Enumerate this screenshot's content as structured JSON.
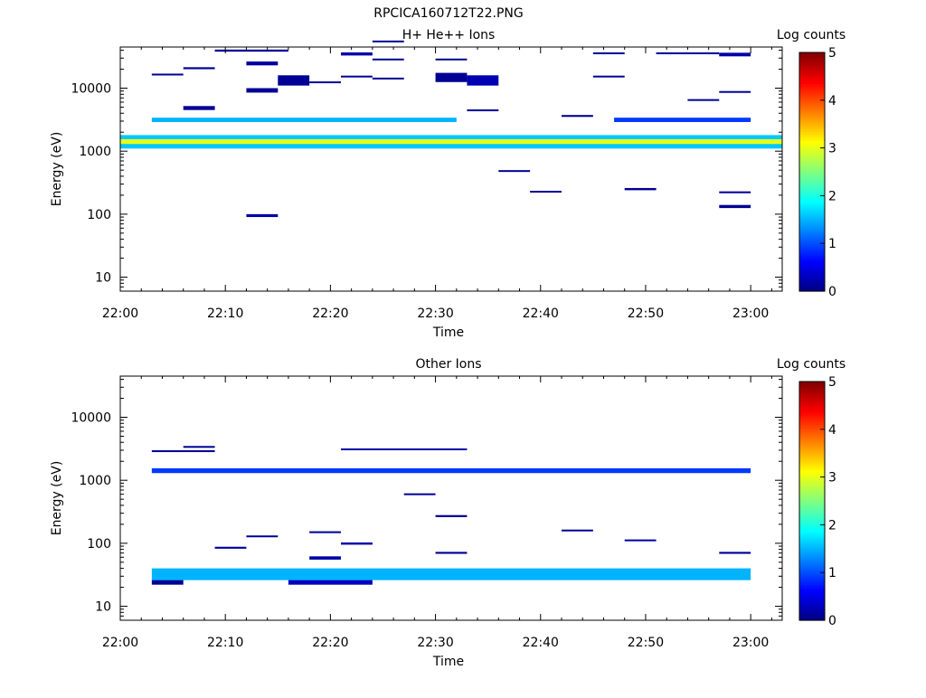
{
  "figure_title": "RPCICA160712T22.PNG",
  "colors": {
    "axis": "#000000",
    "background": "#ffffff"
  },
  "colorbar": {
    "label": "Log counts",
    "min": 0,
    "max": 5,
    "ticks": [
      "0",
      "1",
      "2",
      "3",
      "4",
      "5"
    ],
    "colormap": "jet"
  },
  "chart_data": [
    {
      "type": "heatmap",
      "title": "H+ He++ Ions",
      "xlabel": "Time",
      "ylabel": "Energy (eV)",
      "yscale": "log",
      "ylim": [
        6,
        45000
      ],
      "xlim": [
        "22:00",
        "23:03"
      ],
      "xticks": [
        "22:00",
        "22:10",
        "22:20",
        "22:30",
        "22:40",
        "22:50",
        "23:00"
      ],
      "yticks": [
        "10",
        "100",
        "1000",
        "10000"
      ],
      "cells": [
        {
          "t0": "22:00:00",
          "t1": "23:03:00",
          "e0": 1100,
          "e1": 1800,
          "v": 1.6
        },
        {
          "t0": "22:00:00",
          "t1": "23:03:00",
          "e0": 1300,
          "e1": 1550,
          "v": 3.0
        },
        {
          "t0": "22:03:00",
          "t1": "22:32:00",
          "e0": 2900,
          "e1": 3400,
          "v": 1.5
        },
        {
          "t0": "22:47:00",
          "t1": "23:00:00",
          "e0": 2900,
          "e1": 3400,
          "v": 0.9
        },
        {
          "t0": "22:03:00",
          "t1": "22:06:00",
          "e0": 16000,
          "e1": 17000,
          "v": 0.1
        },
        {
          "t0": "22:06:00",
          "t1": "22:09:00",
          "e0": 20000,
          "e1": 21500,
          "v": 0.1
        },
        {
          "t0": "22:06:00",
          "t1": "22:09:00",
          "e0": 4500,
          "e1": 5200,
          "v": 0.1
        },
        {
          "t0": "22:09:00",
          "t1": "22:16:00",
          "e0": 38000,
          "e1": 41000,
          "v": 0.1
        },
        {
          "t0": "22:12:00",
          "t1": "22:15:00",
          "e0": 8500,
          "e1": 10000,
          "v": 0.1
        },
        {
          "t0": "22:12:00",
          "t1": "22:15:00",
          "e0": 23000,
          "e1": 26500,
          "v": 0.15
        },
        {
          "t0": "22:12:00",
          "t1": "22:15:00",
          "e0": 90,
          "e1": 100,
          "v": 0.2
        },
        {
          "t0": "22:15:00",
          "t1": "22:18:00",
          "e0": 11000,
          "e1": 16000,
          "v": 0.1
        },
        {
          "t0": "22:18:00",
          "t1": "22:21:00",
          "e0": 12000,
          "e1": 12800,
          "v": 0.1
        },
        {
          "t0": "22:21:00",
          "t1": "22:24:00",
          "e0": 15000,
          "e1": 15800,
          "v": 0.1
        },
        {
          "t0": "22:21:00",
          "t1": "22:24:00",
          "e0": 33000,
          "e1": 37000,
          "v": 0.2
        },
        {
          "t0": "22:24:00",
          "t1": "22:27:00",
          "e0": 14000,
          "e1": 14700,
          "v": 0.1
        },
        {
          "t0": "22:24:00",
          "t1": "22:27:00",
          "e0": 28000,
          "e1": 29500,
          "v": 0.1
        },
        {
          "t0": "22:24:00",
          "t1": "22:27:00",
          "e0": 55000,
          "e1": 57000,
          "v": 0.1
        },
        {
          "t0": "22:30:00",
          "t1": "22:33:00",
          "e0": 28000,
          "e1": 29500,
          "v": 0.1
        },
        {
          "t0": "22:30:00",
          "t1": "22:33:00",
          "e0": 12500,
          "e1": 17500,
          "v": 0.1
        },
        {
          "t0": "22:33:00",
          "t1": "22:36:00",
          "e0": 4300,
          "e1": 4600,
          "v": 0.1
        },
        {
          "t0": "22:33:00",
          "t1": "22:36:00",
          "e0": 11000,
          "e1": 16000,
          "v": 0.25
        },
        {
          "t0": "22:36:00",
          "t1": "22:39:00",
          "e0": 470,
          "e1": 500,
          "v": 0.1
        },
        {
          "t0": "22:39:00",
          "t1": "22:42:00",
          "e0": 220,
          "e1": 235,
          "v": 0.1
        },
        {
          "t0": "22:42:00",
          "t1": "22:45:00",
          "e0": 3500,
          "e1": 3750,
          "v": 0.1
        },
        {
          "t0": "22:45:00",
          "t1": "22:48:00",
          "e0": 35000,
          "e1": 37000,
          "v": 0.1
        },
        {
          "t0": "22:45:00",
          "t1": "22:48:00",
          "e0": 15000,
          "e1": 15800,
          "v": 0.1
        },
        {
          "t0": "22:48:00",
          "t1": "22:51:00",
          "e0": 240,
          "e1": 260,
          "v": 0.1
        },
        {
          "t0": "22:51:00",
          "t1": "22:57:00",
          "e0": 35000,
          "e1": 37000,
          "v": 0.1
        },
        {
          "t0": "22:54:00",
          "t1": "22:57:00",
          "e0": 6300,
          "e1": 6700,
          "v": 0.1
        },
        {
          "t0": "22:57:00",
          "t1": "23:00:00",
          "e0": 8500,
          "e1": 9000,
          "v": 0.1
        },
        {
          "t0": "22:57:00",
          "t1": "23:00:00",
          "e0": 32000,
          "e1": 36500,
          "v": 0.2
        },
        {
          "t0": "22:57:00",
          "t1": "23:00:00",
          "e0": 125,
          "e1": 140,
          "v": 0.1
        },
        {
          "t0": "22:57:00",
          "t1": "23:00:00",
          "e0": 215,
          "e1": 230,
          "v": 0.1
        }
      ]
    },
    {
      "type": "heatmap",
      "title": "Other Ions",
      "xlabel": "Time",
      "ylabel": "Energy (eV)",
      "yscale": "log",
      "ylim": [
        6,
        45000
      ],
      "xlim": [
        "22:00",
        "23:03"
      ],
      "xticks": [
        "22:00",
        "22:10",
        "22:20",
        "22:30",
        "22:40",
        "22:50",
        "23:00"
      ],
      "yticks": [
        "10",
        "100",
        "1000",
        "10000"
      ],
      "cells": [
        {
          "t0": "22:03:00",
          "t1": "23:00:00",
          "e0": 1300,
          "e1": 1550,
          "v": 0.9
        },
        {
          "t0": "22:03:00",
          "t1": "22:09:00",
          "e0": 2800,
          "e1": 3000,
          "v": 0.1
        },
        {
          "t0": "22:06:00",
          "t1": "22:09:00",
          "e0": 3300,
          "e1": 3500,
          "v": 0.1
        },
        {
          "t0": "22:21:00",
          "t1": "22:33:00",
          "e0": 3000,
          "e1": 3200,
          "v": 0.2
        },
        {
          "t0": "22:27:00",
          "t1": "22:30:00",
          "e0": 590,
          "e1": 620,
          "v": 0.1
        },
        {
          "t0": "22:30:00",
          "t1": "22:33:00",
          "e0": 260,
          "e1": 280,
          "v": 0.1
        },
        {
          "t0": "22:03:00",
          "t1": "23:00:00",
          "e0": 26,
          "e1": 40,
          "v": 1.5
        },
        {
          "t0": "22:03:00",
          "t1": "22:06:00",
          "e0": 22,
          "e1": 26,
          "v": 0.1
        },
        {
          "t0": "22:16:00",
          "t1": "22:24:00",
          "e0": 22,
          "e1": 26,
          "v": 0.3
        },
        {
          "t0": "22:09:00",
          "t1": "22:12:00",
          "e0": 82,
          "e1": 88,
          "v": 0.1
        },
        {
          "t0": "22:12:00",
          "t1": "22:15:00",
          "e0": 125,
          "e1": 133,
          "v": 0.1
        },
        {
          "t0": "22:18:00",
          "t1": "22:21:00",
          "e0": 55,
          "e1": 62,
          "v": 0.2
        },
        {
          "t0": "22:18:00",
          "t1": "22:21:00",
          "e0": 145,
          "e1": 155,
          "v": 0.1
        },
        {
          "t0": "22:21:00",
          "t1": "22:24:00",
          "e0": 95,
          "e1": 103,
          "v": 0.2
        },
        {
          "t0": "22:30:00",
          "t1": "22:33:00",
          "e0": 68,
          "e1": 73,
          "v": 0.1
        },
        {
          "t0": "22:42:00",
          "t1": "22:45:00",
          "e0": 157,
          "e1": 165,
          "v": 0.1
        },
        {
          "t0": "22:48:00",
          "t1": "22:51:00",
          "e0": 108,
          "e1": 115,
          "v": 0.2
        },
        {
          "t0": "22:57:00",
          "t1": "23:00:00",
          "e0": 68,
          "e1": 73,
          "v": 0.1
        }
      ]
    }
  ]
}
